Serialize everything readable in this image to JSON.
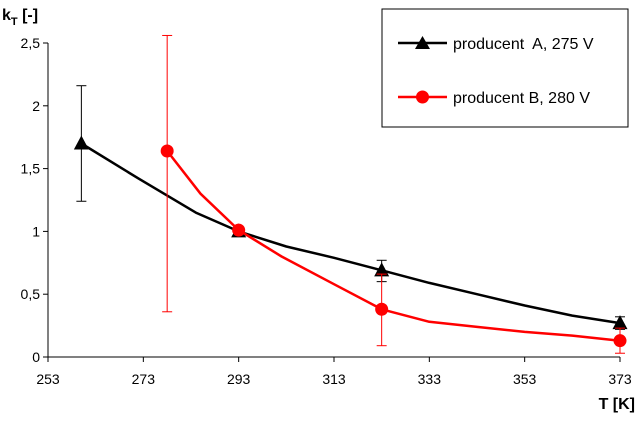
{
  "chart_data": {
    "type": "line",
    "title": "",
    "ylabel_main": "k",
    "ylabel_sub": "T",
    "ylabel_unit": " [-]",
    "xlabel": "T [K]",
    "xlim": [
      253,
      373
    ],
    "ylim": [
      0,
      2.5
    ],
    "x_ticks": [
      "253",
      "273",
      "293",
      "313",
      "333",
      "353",
      "373"
    ],
    "y_ticks": [
      "0",
      "0,5",
      "1",
      "1,5",
      "2",
      "2,5"
    ],
    "grid": false,
    "legend_position": "top-right",
    "series": [
      {
        "name": "producent  A, 275 V",
        "color": "#000000",
        "marker": "triangle",
        "points": [
          {
            "x": 260,
            "y": 1.7,
            "err_low": 1.24,
            "err_high": 2.16
          },
          {
            "x": 293,
            "y": 1.0,
            "err_low": 0.97,
            "err_high": 1.03
          },
          {
            "x": 323,
            "y": 0.69,
            "err_low": 0.6,
            "err_high": 0.77
          },
          {
            "x": 373,
            "y": 0.27,
            "err_low": 0.22,
            "err_high": 0.32
          }
        ],
        "curve": [
          [
            260,
            1.7
          ],
          [
            272,
            1.42
          ],
          [
            284,
            1.15
          ],
          [
            293,
            1.0
          ],
          [
            303,
            0.88
          ],
          [
            313,
            0.79
          ],
          [
            323,
            0.69
          ],
          [
            333,
            0.59
          ],
          [
            343,
            0.5
          ],
          [
            353,
            0.41
          ],
          [
            363,
            0.33
          ],
          [
            373,
            0.27
          ]
        ]
      },
      {
        "name": "producent B, 280 V",
        "color": "#ff0000",
        "marker": "circle",
        "points": [
          {
            "x": 278,
            "y": 1.64,
            "err_low": 0.36,
            "err_high": 2.56
          },
          {
            "x": 293,
            "y": 1.01,
            "err_low": 0.99,
            "err_high": 1.03
          },
          {
            "x": 323,
            "y": 0.38,
            "err_low": 0.09,
            "err_high": 0.66
          },
          {
            "x": 373,
            "y": 0.13,
            "err_low": 0.03,
            "err_high": 0.23
          }
        ],
        "curve": [
          [
            278,
            1.64
          ],
          [
            285,
            1.3
          ],
          [
            293,
            1.01
          ],
          [
            302,
            0.8
          ],
          [
            313,
            0.58
          ],
          [
            323,
            0.38
          ],
          [
            333,
            0.28
          ],
          [
            343,
            0.24
          ],
          [
            353,
            0.2
          ],
          [
            363,
            0.17
          ],
          [
            373,
            0.13
          ]
        ]
      }
    ]
  }
}
